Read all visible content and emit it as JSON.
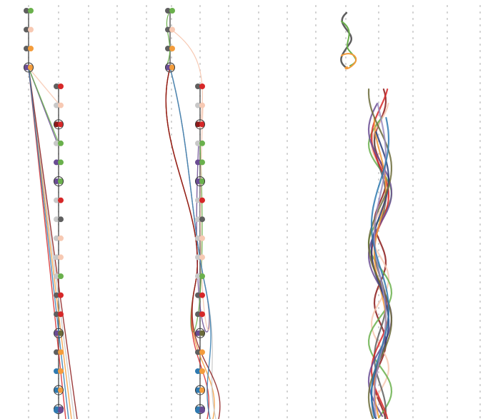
{
  "colors": {
    "grey": "#5f5f5f",
    "light_grey": "#c8c8c8",
    "green": "#6ab04c",
    "peach": "#f7c9b3",
    "orange": "#f39c3c",
    "purple": "#6a4c93",
    "red": "#d62728",
    "dark_red": "#8b1a1a",
    "blue": "#2f7ab0",
    "navy": "#283d7a",
    "olive": "#6b6b3a",
    "light_purple": "#9a8cc0"
  },
  "panels": [
    {
      "name": "panel-left",
      "layout": "two-column-tree"
    },
    {
      "name": "panel-middle",
      "layout": "two-column-tree-curved"
    },
    {
      "name": "panel-right",
      "layout": "braided-strands"
    }
  ],
  "tree_nodes": [
    [
      "grey",
      "green"
    ],
    [
      "grey",
      "peach"
    ],
    [
      "grey",
      "orange"
    ],
    [
      "purple",
      "orange"
    ],
    [
      "grey",
      "red"
    ],
    [
      "light_grey",
      "peach"
    ],
    [
      "dark_red",
      "red"
    ],
    [
      "light_grey",
      "green"
    ],
    [
      "purple",
      "green"
    ],
    [
      "purple",
      "green"
    ],
    [
      "light_grey",
      "red"
    ],
    [
      "light_grey",
      "grey"
    ],
    [
      "light_grey",
      "peach"
    ],
    [
      "light_grey",
      "peach"
    ],
    [
      "light_grey",
      "green"
    ],
    [
      "grey",
      "red"
    ],
    [
      "grey",
      "red"
    ],
    [
      "purple",
      "olive"
    ],
    [
      "grey",
      "orange"
    ],
    [
      "blue",
      "orange"
    ],
    [
      "blue",
      "orange"
    ],
    [
      "blue",
      "purple"
    ],
    [
      "blue",
      "purple"
    ]
  ],
  "strand_colors": [
    "dark_red",
    "peach",
    "green",
    "grey",
    "red",
    "purple",
    "orange",
    "navy",
    "olive",
    "light_purple",
    "blue"
  ]
}
